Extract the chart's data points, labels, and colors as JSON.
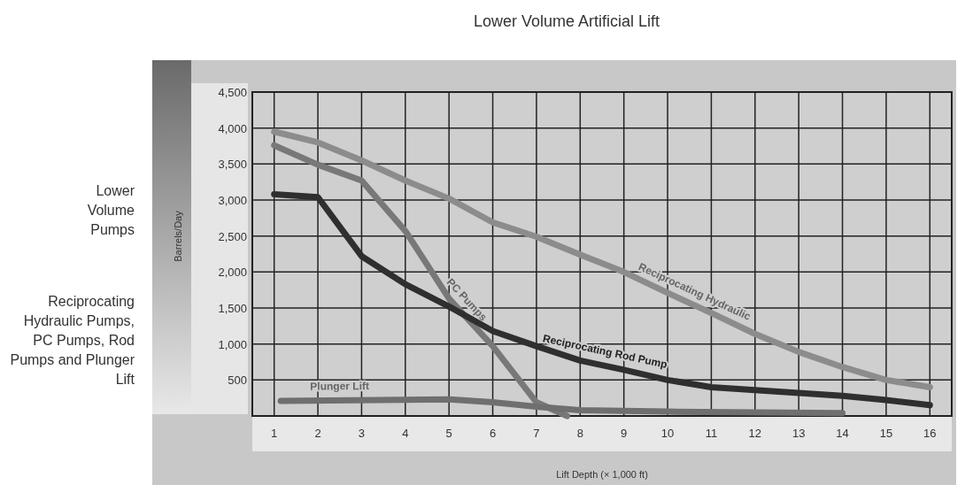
{
  "chart_data": {
    "type": "line",
    "title": "Lower Volume Artificial Lift",
    "xlabel": "Lift Depth (× 1,000 ft)",
    "ylabel": "Barrels/Day",
    "annotations": [
      "Lower Volume Pumps",
      "Reciprocating Hydraulic Pumps, PC Pumps, Rod Pumps and Plunger Lift"
    ],
    "xlim": [
      0.5,
      16.5
    ],
    "xticks": [
      1,
      2,
      3,
      4,
      5,
      6,
      7,
      8,
      9,
      10,
      11,
      12,
      13,
      14,
      15,
      16
    ],
    "ylim": [
      0,
      4500
    ],
    "yticks": [
      500,
      {
        "value": 1000,
        "label": "1,000"
      },
      {
        "value": 1500,
        "label": "1,500"
      },
      {
        "value": 2000,
        "label": "2,000"
      },
      {
        "value": 2500,
        "label": "2,500"
      },
      {
        "value": 3000,
        "label": "3,000"
      },
      {
        "value": 3500,
        "label": "3,500"
      },
      {
        "value": 4000,
        "label": "4,000"
      },
      {
        "value": 4500,
        "label": "4,500"
      }
    ],
    "grid": true,
    "marker": "none",
    "line_style": "solid",
    "series": [
      {
        "name": "Reciprocating Hydraulic",
        "color": "#8c8c8c",
        "x": [
          1,
          2,
          3,
          4,
          5,
          6,
          7,
          8,
          9,
          10,
          11,
          12,
          13,
          14,
          15,
          16
        ],
        "values": [
          3950,
          3800,
          3550,
          3270,
          3020,
          2690,
          2490,
          2240,
          2000,
          1710,
          1430,
          1140,
          890,
          680,
          500,
          400
        ]
      },
      {
        "name": "PC Pumps",
        "color": "#787878",
        "x": [
          1,
          2,
          3,
          4,
          5,
          6,
          7,
          7.7
        ],
        "values": [
          3760,
          3490,
          3270,
          2570,
          1630,
          970,
          190,
          0
        ]
      },
      {
        "name": "Reciprocating Rod Pump",
        "color": "#2f2f2f",
        "x": [
          1,
          2,
          3,
          4,
          5,
          6,
          7,
          8,
          9,
          10,
          11,
          12,
          13,
          14,
          15,
          16
        ],
        "values": [
          3080,
          3040,
          2220,
          1830,
          1520,
          1180,
          970,
          770,
          640,
          500,
          400,
          360,
          320,
          280,
          220,
          150
        ]
      },
      {
        "name": "Plunger Lift",
        "color": "#6f6f6f",
        "x": [
          1.15,
          5,
          6,
          7,
          8,
          10,
          14
        ],
        "values": [
          210,
          230,
          190,
          130,
          80,
          60,
          40
        ]
      }
    ]
  }
}
